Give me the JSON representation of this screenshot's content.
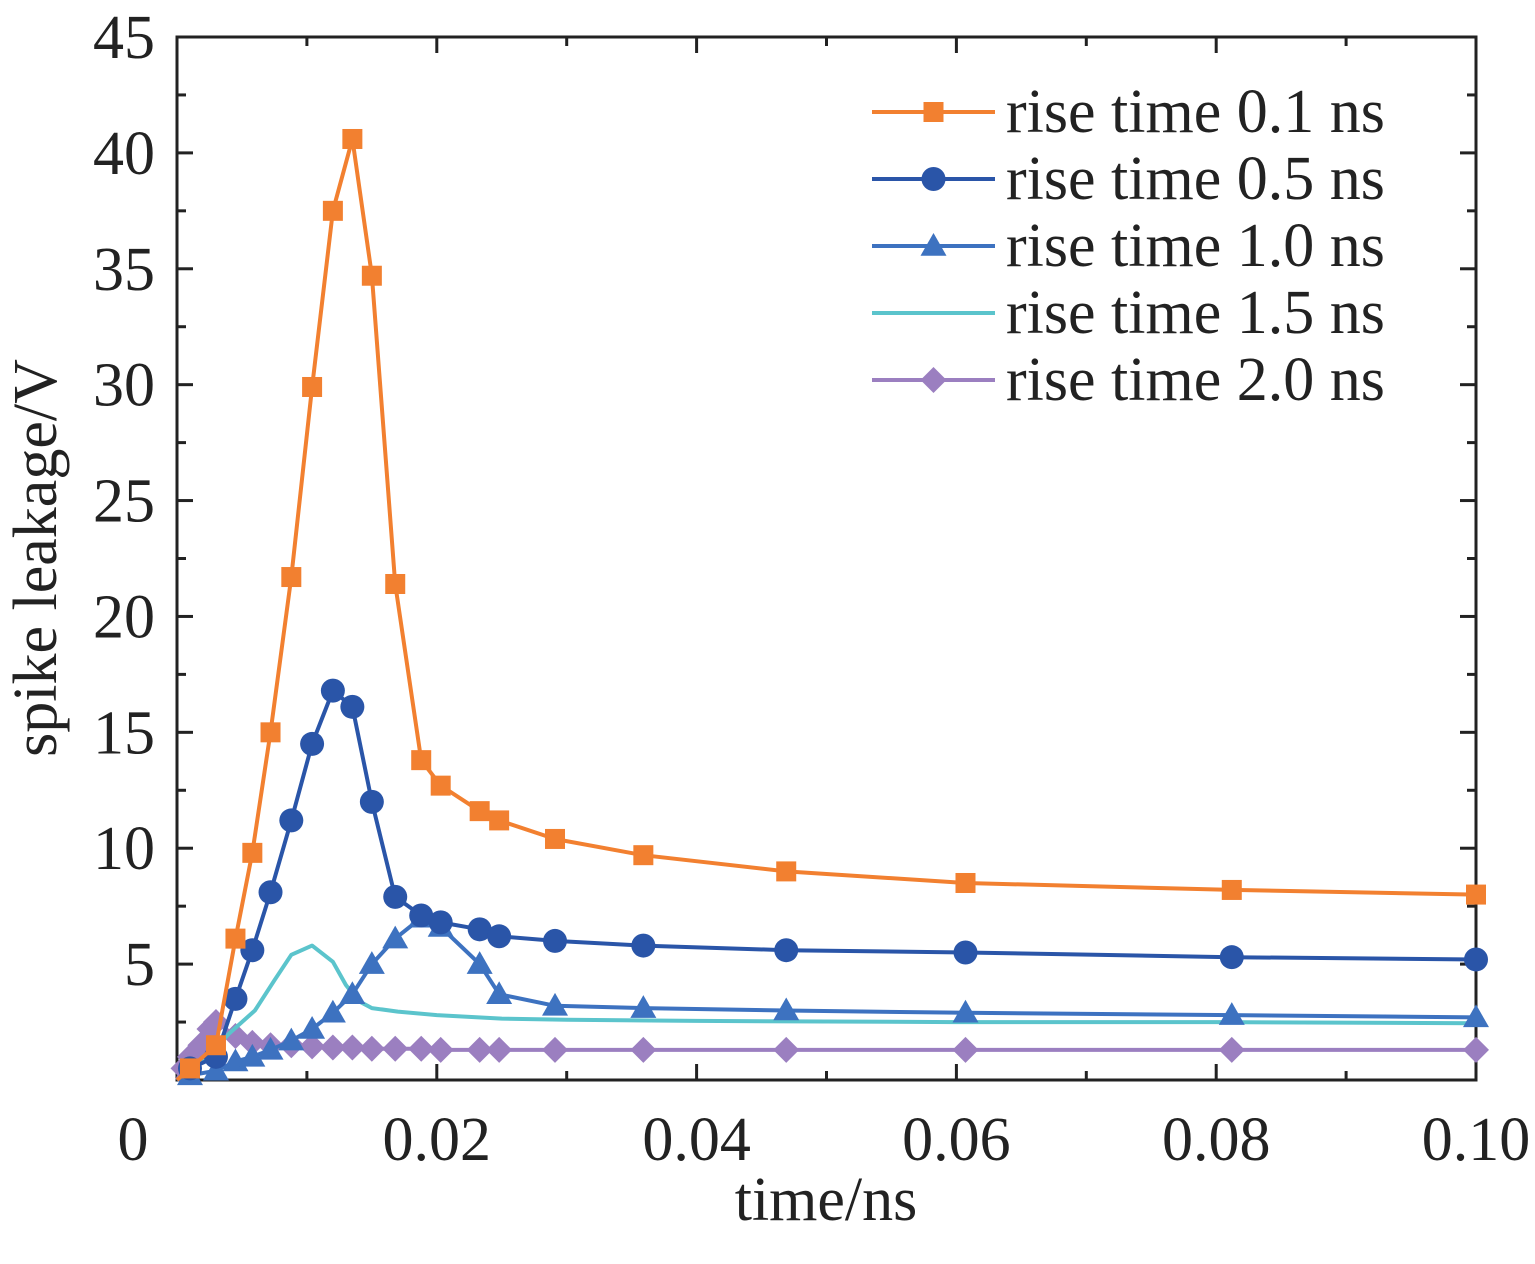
{
  "chart_data": {
    "type": "line",
    "title": "",
    "xlabel": "time/ns",
    "ylabel": "spike leakage/V",
    "xlim": [
      0,
      0.1
    ],
    "ylim": [
      0,
      45
    ],
    "xticks": [
      0,
      0.02,
      0.04,
      0.06,
      0.08,
      0.1
    ],
    "xtick_labels": [
      "0",
      "0.02",
      "0.04",
      "0.06",
      "0.08",
      "0.10"
    ],
    "yticks": [
      5,
      10,
      15,
      20,
      25,
      30,
      35,
      40,
      45
    ],
    "ytick_labels": [
      "5",
      "10",
      "15",
      "20",
      "25",
      "30",
      "35",
      "40",
      "45"
    ],
    "grid": false,
    "legend_position": "top-right",
    "series": [
      {
        "name": "rise time 0.1 ns",
        "color": "#F28030",
        "marker": "square",
        "points": [
          [
            0,
            0
          ],
          [
            0.001,
            0.5
          ],
          [
            0.003,
            1.5
          ],
          [
            0.0045,
            6.1
          ],
          [
            0.0058,
            9.8
          ],
          [
            0.0072,
            15.0
          ],
          [
            0.0088,
            21.7
          ],
          [
            0.0104,
            29.9
          ],
          [
            0.012,
            37.5
          ],
          [
            0.0135,
            40.6
          ],
          [
            0.015,
            34.7
          ],
          [
            0.0168,
            21.4
          ],
          [
            0.0188,
            13.8
          ],
          [
            0.0203,
            12.7
          ],
          [
            0.0233,
            11.6
          ],
          [
            0.0248,
            11.2
          ],
          [
            0.0291,
            10.4
          ],
          [
            0.0359,
            9.7
          ],
          [
            0.0469,
            9.0
          ],
          [
            0.0607,
            8.5
          ],
          [
            0.0812,
            8.2
          ],
          [
            0.1,
            8.0
          ]
        ]
      },
      {
        "name": "rise time 0.5 ns",
        "color": "#2A55A8",
        "marker": "circle",
        "points": [
          [
            0,
            0
          ],
          [
            0.001,
            0.5
          ],
          [
            0.003,
            1.0
          ],
          [
            0.0045,
            3.5
          ],
          [
            0.0058,
            5.6
          ],
          [
            0.0072,
            8.1
          ],
          [
            0.0088,
            11.2
          ],
          [
            0.0104,
            14.5
          ],
          [
            0.012,
            16.8
          ],
          [
            0.0135,
            16.1
          ],
          [
            0.015,
            12.0
          ],
          [
            0.0168,
            7.9
          ],
          [
            0.0188,
            7.1
          ],
          [
            0.0203,
            6.8
          ],
          [
            0.0233,
            6.5
          ],
          [
            0.0248,
            6.2
          ],
          [
            0.0291,
            6.0
          ],
          [
            0.0359,
            5.8
          ],
          [
            0.0469,
            5.6
          ],
          [
            0.0607,
            5.5
          ],
          [
            0.0812,
            5.3
          ],
          [
            0.1,
            5.2
          ]
        ]
      },
      {
        "name": "rise time 1.0 ns",
        "color": "#3D72C0",
        "marker": "triangle",
        "points": [
          [
            0,
            0
          ],
          [
            0.001,
            0.2
          ],
          [
            0.003,
            0.4
          ],
          [
            0.0045,
            0.8
          ],
          [
            0.0058,
            1.0
          ],
          [
            0.0072,
            1.3
          ],
          [
            0.0088,
            1.7
          ],
          [
            0.0104,
            2.2
          ],
          [
            0.012,
            2.9
          ],
          [
            0.0135,
            3.7
          ],
          [
            0.015,
            5.0
          ],
          [
            0.0168,
            6.1
          ],
          [
            0.0188,
            7.0
          ],
          [
            0.0203,
            6.6
          ],
          [
            0.0233,
            5.0
          ],
          [
            0.0248,
            3.7
          ],
          [
            0.0291,
            3.2
          ],
          [
            0.0359,
            3.1
          ],
          [
            0.0469,
            3.0
          ],
          [
            0.0607,
            2.9
          ],
          [
            0.0812,
            2.8
          ],
          [
            0.1,
            2.7
          ]
        ]
      },
      {
        "name": "rise time 1.5 ns",
        "color": "#5BC4CC",
        "marker": "none",
        "points": [
          [
            0,
            0
          ],
          [
            0.002,
            0.8
          ],
          [
            0.004,
            2.0
          ],
          [
            0.006,
            3.0
          ],
          [
            0.0075,
            4.3
          ],
          [
            0.0088,
            5.4
          ],
          [
            0.0104,
            5.8
          ],
          [
            0.012,
            5.1
          ],
          [
            0.013,
            4.1
          ],
          [
            0.014,
            3.4
          ],
          [
            0.015,
            3.1
          ],
          [
            0.017,
            2.95
          ],
          [
            0.02,
            2.8
          ],
          [
            0.025,
            2.65
          ],
          [
            0.03,
            2.6
          ],
          [
            0.04,
            2.55
          ],
          [
            0.06,
            2.5
          ],
          [
            0.08,
            2.5
          ],
          [
            0.1,
            2.45
          ]
        ]
      },
      {
        "name": "rise time 2.0 ns",
        "color": "#9B7FC0",
        "marker": "diamond",
        "points": [
          [
            0,
            0
          ],
          [
            0.0005,
            0.5
          ],
          [
            0.001,
            1.0
          ],
          [
            0.0018,
            1.5
          ],
          [
            0.0025,
            2.2
          ],
          [
            0.003,
            2.5
          ],
          [
            0.0045,
            1.9
          ],
          [
            0.0058,
            1.6
          ],
          [
            0.0072,
            1.5
          ],
          [
            0.0088,
            1.5
          ],
          [
            0.0104,
            1.45
          ],
          [
            0.012,
            1.4
          ],
          [
            0.0135,
            1.4
          ],
          [
            0.015,
            1.35
          ],
          [
            0.0168,
            1.35
          ],
          [
            0.0188,
            1.35
          ],
          [
            0.0203,
            1.3
          ],
          [
            0.0233,
            1.3
          ],
          [
            0.0248,
            1.3
          ],
          [
            0.0291,
            1.3
          ],
          [
            0.0359,
            1.3
          ],
          [
            0.0469,
            1.3
          ],
          [
            0.0607,
            1.3
          ],
          [
            0.0812,
            1.3
          ],
          [
            0.1,
            1.3
          ]
        ]
      }
    ]
  }
}
